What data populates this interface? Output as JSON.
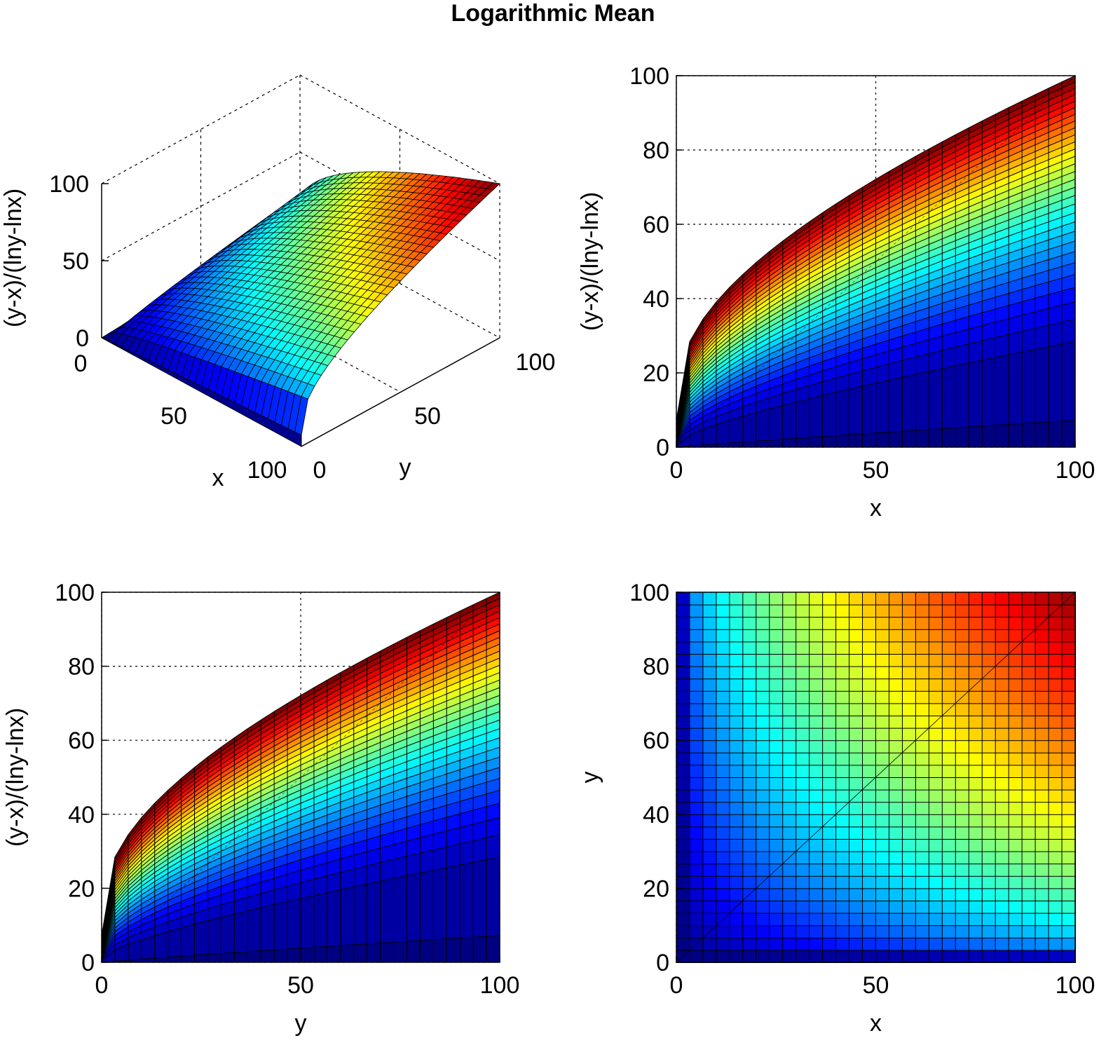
{
  "figure_title": "Logarithmic Mean",
  "chart_data": [
    {
      "type": "surface-3d",
      "function": "(y-x)/(lny-lnx)",
      "xlabel": "x",
      "ylabel": "y",
      "zlabel": "(y-x)/(lny-lnx)",
      "x_ticks": [
        "0",
        "50",
        "100"
      ],
      "y_ticks": [
        "0",
        "50",
        "100"
      ],
      "z_ticks": [
        "0",
        "50",
        "100"
      ],
      "xlim": [
        0,
        100
      ],
      "ylim": [
        0,
        100
      ],
      "zlim": [
        0,
        100
      ],
      "grid": true,
      "colormap": "jet"
    },
    {
      "type": "surface-side-view",
      "view": "x-z",
      "function": "(y-x)/(lny-lnx)",
      "xlabel": "x",
      "ylabel": "(y-x)/(lny-lnx)",
      "x_ticks": [
        "0",
        "50",
        "100"
      ],
      "y_ticks": [
        "0",
        "20",
        "40",
        "60",
        "80",
        "100"
      ],
      "xlim": [
        0,
        100
      ],
      "ylim": [
        0,
        100
      ],
      "grid": true,
      "colormap": "jet"
    },
    {
      "type": "surface-side-view",
      "view": "y-z",
      "function": "(y-x)/(lny-lnx)",
      "xlabel": "y",
      "ylabel": "(y-x)/(lny-lnx)",
      "x_ticks": [
        "0",
        "50",
        "100"
      ],
      "y_ticks": [
        "0",
        "20",
        "40",
        "60",
        "80",
        "100"
      ],
      "xlim": [
        0,
        100
      ],
      "ylim": [
        0,
        100
      ],
      "grid": true,
      "colormap": "jet"
    },
    {
      "type": "heatmap",
      "view": "top",
      "function": "(y-x)/(lny-lnx)",
      "xlabel": "x",
      "ylabel": "y",
      "x_ticks": [
        "0",
        "50",
        "100"
      ],
      "y_ticks": [
        "0",
        "20",
        "40",
        "60",
        "80",
        "100"
      ],
      "xlim": [
        0,
        100
      ],
      "ylim": [
        0,
        100
      ],
      "grid": true,
      "colormap": "jet"
    }
  ]
}
